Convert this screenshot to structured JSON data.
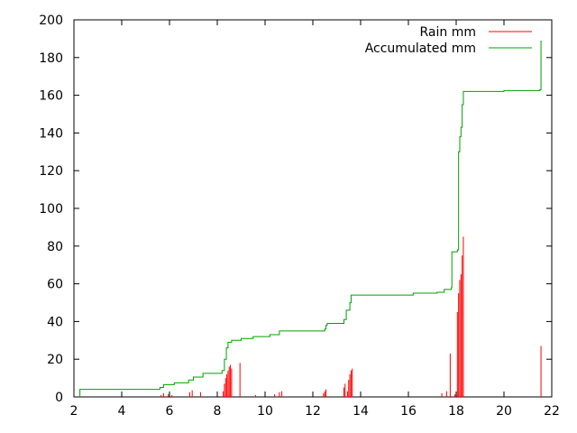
{
  "chart_data": {
    "type": "bar+line",
    "xlim": [
      2,
      22
    ],
    "ylim": [
      0,
      200
    ],
    "x_ticks": [
      "2",
      "4",
      "6",
      "8",
      "10",
      "12",
      "14",
      "16",
      "18",
      "20",
      "22"
    ],
    "y_ticks": [
      "0",
      "20",
      "40",
      "60",
      "80",
      "100",
      "120",
      "140",
      "160",
      "180",
      "200"
    ],
    "legend_position": "top-right",
    "series": [
      {
        "name": "Rain mm",
        "type": "impulse",
        "color": "#ff0000",
        "points": [
          [
            5.65,
            1.0
          ],
          [
            5.75,
            2.0
          ],
          [
            5.95,
            1.5
          ],
          [
            6.1,
            1.0
          ],
          [
            6.85,
            2.5
          ],
          [
            6.95,
            3.5
          ],
          [
            7.3,
            2.5
          ],
          [
            8.0,
            1.5
          ],
          [
            8.25,
            3
          ],
          [
            8.3,
            7
          ],
          [
            8.35,
            10
          ],
          [
            8.4,
            12
          ],
          [
            8.45,
            14
          ],
          [
            8.5,
            16
          ],
          [
            8.55,
            17
          ],
          [
            8.6,
            15
          ],
          [
            8.95,
            18
          ],
          [
            9.6,
            1.0
          ],
          [
            10.0,
            1.5
          ],
          [
            10.4,
            1.5
          ],
          [
            10.6,
            2.5
          ],
          [
            10.7,
            3.0
          ],
          [
            12.45,
            2
          ],
          [
            12.5,
            3
          ],
          [
            12.55,
            4
          ],
          [
            13.3,
            5
          ],
          [
            13.35,
            7
          ],
          [
            13.45,
            3
          ],
          [
            13.5,
            9
          ],
          [
            13.55,
            12
          ],
          [
            13.6,
            14
          ],
          [
            13.65,
            15
          ],
          [
            17.4,
            2
          ],
          [
            17.6,
            3
          ],
          [
            17.75,
            23
          ],
          [
            17.95,
            1.5
          ],
          [
            18.05,
            45
          ],
          [
            18.1,
            55
          ],
          [
            18.15,
            62
          ],
          [
            18.2,
            65
          ],
          [
            18.25,
            75
          ],
          [
            18.3,
            85
          ],
          [
            21.55,
            27
          ]
        ]
      },
      {
        "name": "Accumulated mm",
        "type": "step",
        "color": "#00a000",
        "points": [
          [
            2.25,
            0
          ],
          [
            2.25,
            4
          ],
          [
            5.6,
            5
          ],
          [
            5.75,
            6.5
          ],
          [
            6.2,
            7.5
          ],
          [
            6.8,
            9
          ],
          [
            7.0,
            10.5
          ],
          [
            7.4,
            12.5
          ],
          [
            8.2,
            14
          ],
          [
            8.3,
            20
          ],
          [
            8.38,
            26
          ],
          [
            8.45,
            29
          ],
          [
            8.6,
            30
          ],
          [
            9.0,
            31
          ],
          [
            9.5,
            32
          ],
          [
            10.2,
            33
          ],
          [
            10.6,
            35
          ],
          [
            12.5,
            36
          ],
          [
            12.55,
            38
          ],
          [
            12.6,
            39
          ],
          [
            13.3,
            41
          ],
          [
            13.4,
            46
          ],
          [
            13.55,
            50
          ],
          [
            13.6,
            54
          ],
          [
            16.2,
            55
          ],
          [
            17.2,
            55.5
          ],
          [
            17.5,
            57
          ],
          [
            17.8,
            58
          ],
          [
            17.82,
            77
          ],
          [
            18.05,
            78
          ],
          [
            18.1,
            130
          ],
          [
            18.15,
            138
          ],
          [
            18.2,
            143
          ],
          [
            18.25,
            155
          ],
          [
            18.3,
            162
          ],
          [
            20.0,
            162.5
          ],
          [
            21.5,
            163
          ],
          [
            21.55,
            189
          ]
        ]
      }
    ]
  }
}
